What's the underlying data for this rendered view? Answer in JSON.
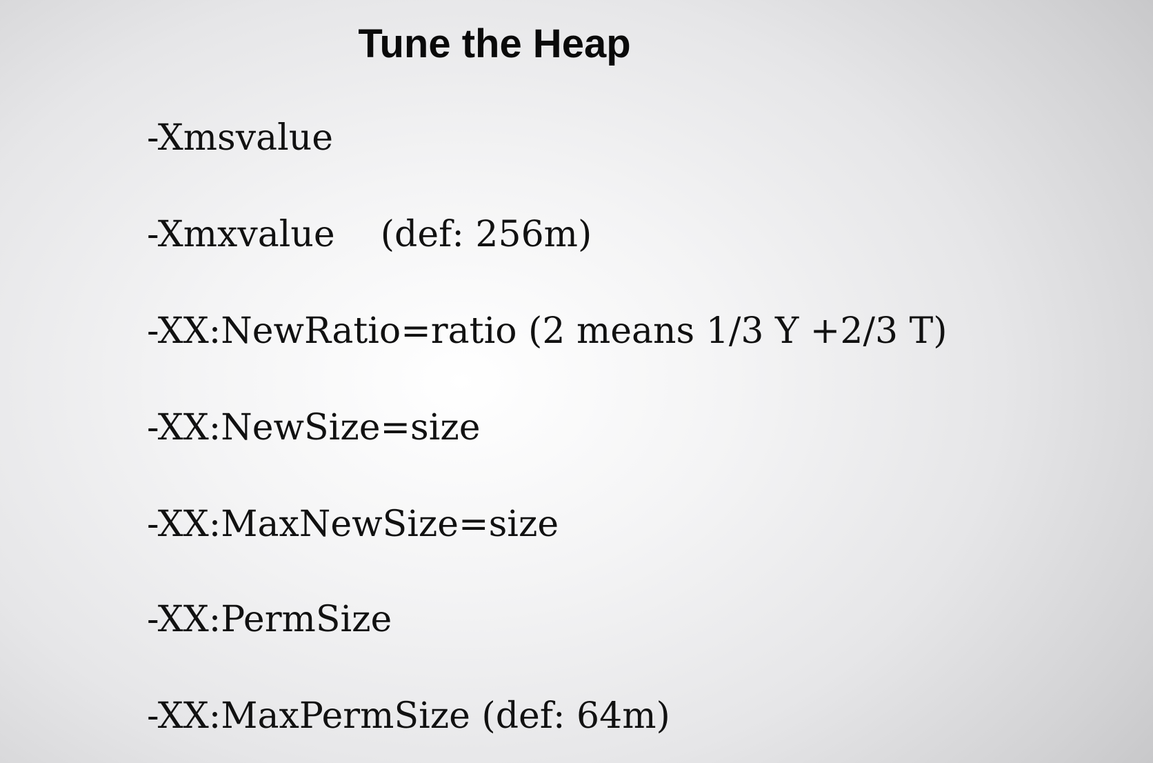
{
  "slide": {
    "title": "Tune the Heap",
    "options": [
      {
        "flag": "-Xmsvalue",
        "note": ""
      },
      {
        "flag": "-Xmxvalue",
        "note": "    (def: 256m)"
      },
      {
        "flag": "-XX:NewRatio=ratio",
        "note": " (2 means 1/3 Y +2/3 T)"
      },
      {
        "flag": "-XX:NewSize=size",
        "note": ""
      },
      {
        "flag": "-XX:MaxNewSize=size",
        "note": ""
      },
      {
        "flag": "-XX:PermSize",
        "note": ""
      },
      {
        "flag": "-XX:MaxPermSize",
        "note": " (def: 64m)"
      }
    ]
  }
}
